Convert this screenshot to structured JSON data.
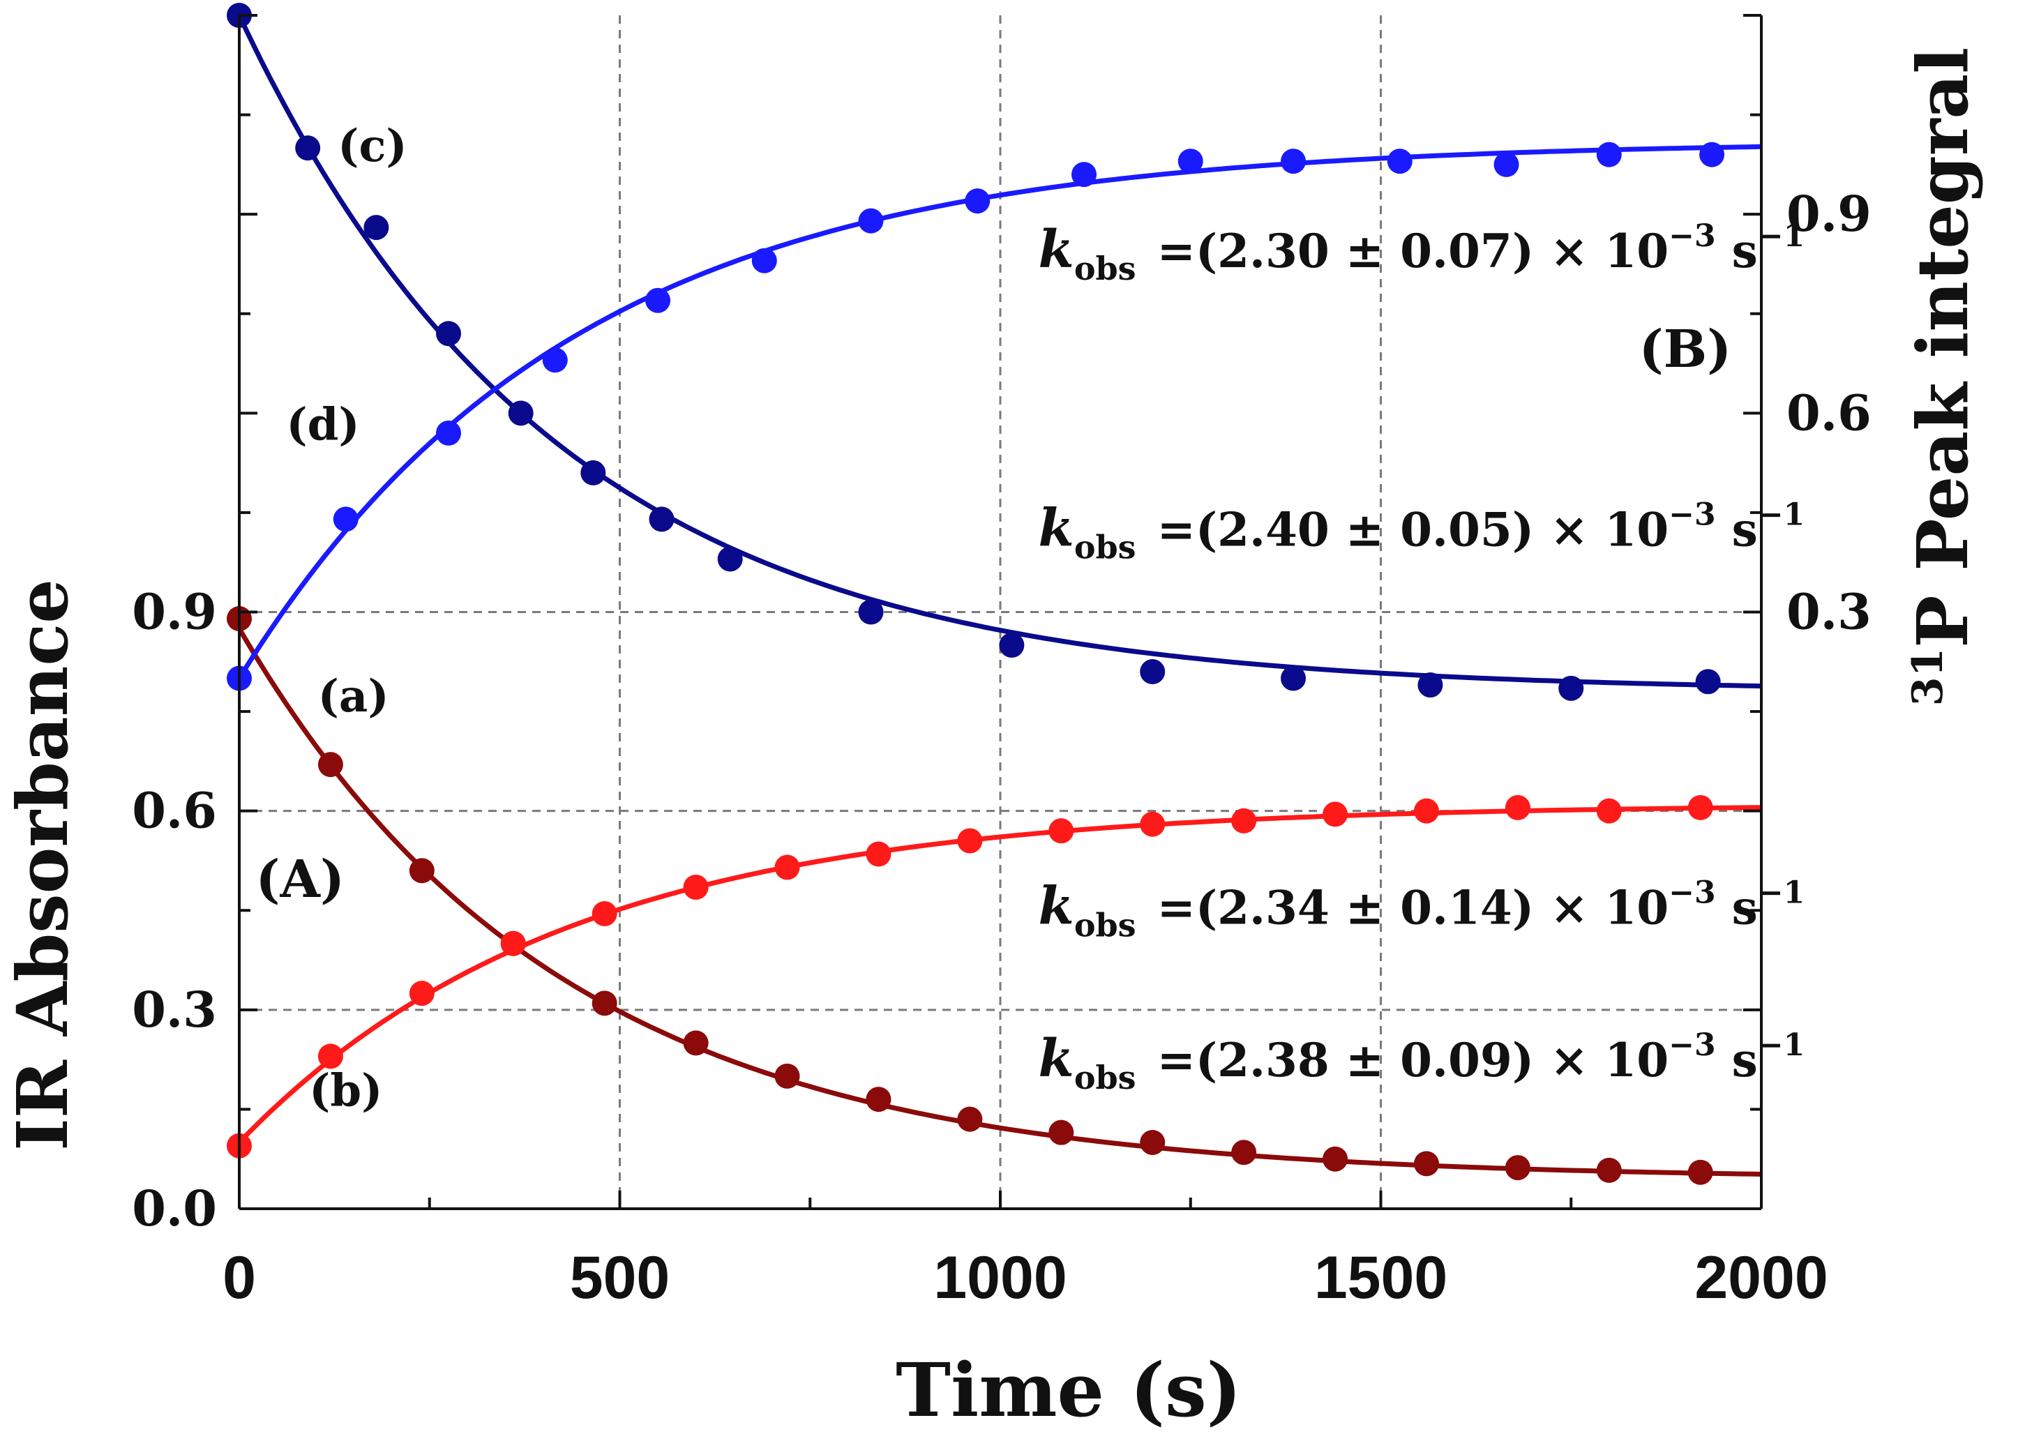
{
  "chart_data": {
    "type": "scatter",
    "title": "",
    "xlabel": "Time (s)",
    "ylabel_left": "IR Absorbance",
    "ylabel_right_sup": "31",
    "ylabel_right": "P Peak integral",
    "x_range": [
      0,
      2000
    ],
    "x_ticks": [
      "0",
      "500",
      "1000",
      "1500",
      "2000"
    ],
    "y_left_range": [
      0.0,
      1.8
    ],
    "y_left_ticks": [
      "0.0",
      "0.3",
      "0.6",
      "0.9"
    ],
    "y_right_range": [
      -0.6,
      1.2
    ],
    "y_right_ticks": [
      "0.3",
      "0.6",
      "0.9"
    ],
    "grid": true,
    "panel_labels": [
      {
        "text": "(A)",
        "x": 80,
        "y": 0.47,
        "axis": "left"
      },
      {
        "text": "(B)",
        "x": 1900,
        "y": 0.67,
        "axis": "right"
      }
    ],
    "series": [
      {
        "name": "(a)",
        "axis": "left",
        "color": "#8b0a0a",
        "model": {
          "A0": 0.83,
          "k": 0.00238,
          "C": 0.045
        },
        "points": [
          [
            0,
            0.89
          ],
          [
            120,
            0.67
          ],
          [
            240,
            0.51
          ],
          [
            360,
            0.4
          ],
          [
            480,
            0.31
          ],
          [
            600,
            0.25
          ],
          [
            720,
            0.2
          ],
          [
            840,
            0.165
          ],
          [
            960,
            0.135
          ],
          [
            1080,
            0.115
          ],
          [
            1200,
            0.1
          ],
          [
            1320,
            0.085
          ],
          [
            1440,
            0.075
          ],
          [
            1560,
            0.068
          ],
          [
            1680,
            0.062
          ],
          [
            1800,
            0.058
          ],
          [
            1920,
            0.055
          ]
        ],
        "label_pos": [
          150,
          0.75
        ]
      },
      {
        "name": "(b)",
        "axis": "left",
        "color": "#ff1a1a",
        "model": {
          "A0": -0.51,
          "k": 0.00234,
          "C": 0.61
        },
        "points": [
          [
            0,
            0.095
          ],
          [
            120,
            0.23
          ],
          [
            240,
            0.325
          ],
          [
            360,
            0.4
          ],
          [
            480,
            0.445
          ],
          [
            600,
            0.485
          ],
          [
            720,
            0.515
          ],
          [
            840,
            0.535
          ],
          [
            960,
            0.555
          ],
          [
            1080,
            0.57
          ],
          [
            1200,
            0.58
          ],
          [
            1320,
            0.585
          ],
          [
            1440,
            0.595
          ],
          [
            1560,
            0.6
          ],
          [
            1680,
            0.605
          ],
          [
            1800,
            0.6
          ],
          [
            1920,
            0.605
          ]
        ],
        "label_pos": [
          140,
          0.155
        ]
      },
      {
        "name": "(c)",
        "axis": "right",
        "color": "#0a0a8c",
        "model": {
          "A0": 1.02,
          "k": 0.0024,
          "C": 0.18
        },
        "points": [
          [
            0,
            1.2
          ],
          [
            90,
            1.0
          ],
          [
            180,
            0.88
          ],
          [
            275,
            0.72
          ],
          [
            370,
            0.6
          ],
          [
            465,
            0.51
          ],
          [
            555,
            0.44
          ],
          [
            645,
            0.38
          ],
          [
            830,
            0.3
          ],
          [
            1015,
            0.25
          ],
          [
            1200,
            0.21
          ],
          [
            1385,
            0.2
          ],
          [
            1565,
            0.19
          ],
          [
            1750,
            0.185
          ],
          [
            1930,
            0.195
          ]
        ],
        "label_pos": [
          175,
          0.98
        ]
      },
      {
        "name": "(d)",
        "axis": "right",
        "color": "#1a1aff",
        "model": {
          "A0": -0.81,
          "k": 0.0023,
          "C": 1.01
        },
        "points": [
          [
            0,
            0.2
          ],
          [
            140,
            0.44
          ],
          [
            275,
            0.57
          ],
          [
            415,
            0.68
          ],
          [
            550,
            0.77
          ],
          [
            690,
            0.83
          ],
          [
            830,
            0.89
          ],
          [
            970,
            0.92
          ],
          [
            1110,
            0.96
          ],
          [
            1250,
            0.98
          ],
          [
            1385,
            0.98
          ],
          [
            1525,
            0.98
          ],
          [
            1665,
            0.975
          ],
          [
            1800,
            0.99
          ],
          [
            1935,
            0.99
          ]
        ],
        "label_pos": [
          110,
          0.56
        ]
      }
    ],
    "annotations": [
      {
        "k": "k",
        "sub": "obs",
        "text_a": "=(2.30 ± 0.07) × 10",
        "exp": "−3",
        "text_b": " s",
        "unit_exp": "−1",
        "x": 1050,
        "y": 0.82,
        "axis": "right"
      },
      {
        "k": "k",
        "sub": "obs",
        "text_a": "=(2.40 ± 0.05) × 10",
        "exp": "−3",
        "text_b": " s",
        "unit_exp": "−1",
        "x": 1050,
        "y": 0.4,
        "axis": "right"
      },
      {
        "k": "k",
        "sub": "obs",
        "text_a": "=(2.34 ± 0.14) × 10",
        "exp": "−3",
        "text_b": " s",
        "unit_exp": "−1",
        "x": 1050,
        "y": 0.43,
        "axis": "left"
      },
      {
        "k": "k",
        "sub": "obs",
        "text_a": "=(2.38 ± 0.09) × 10",
        "exp": "−3",
        "text_b": " s",
        "unit_exp": "−1",
        "x": 1050,
        "y": 0.2,
        "axis": "left"
      }
    ]
  }
}
